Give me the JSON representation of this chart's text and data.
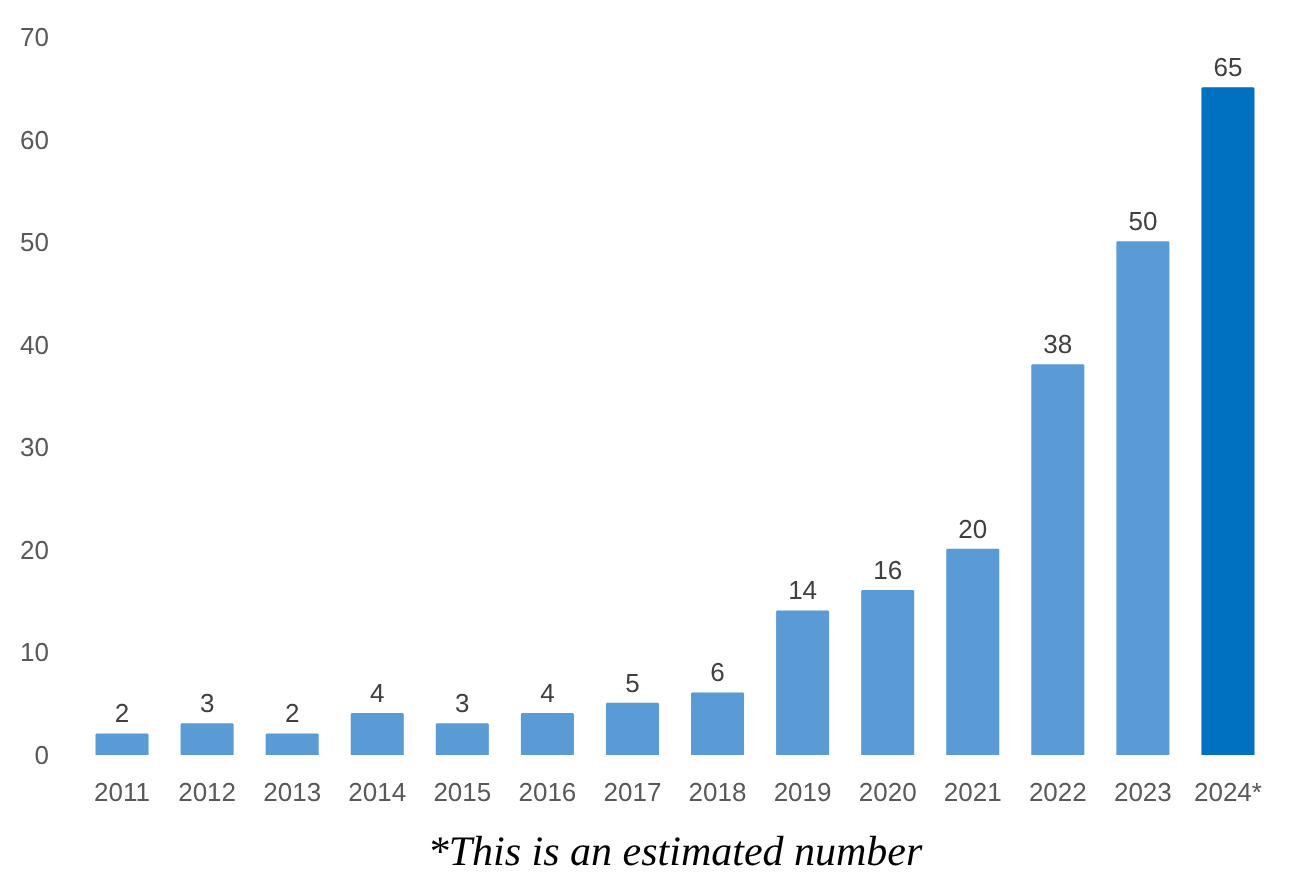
{
  "chart_data": {
    "type": "bar",
    "categories": [
      "2011",
      "2012",
      "2013",
      "2014",
      "2015",
      "2016",
      "2017",
      "2018",
      "2019",
      "2020",
      "2021",
      "2022",
      "2023",
      "2024*"
    ],
    "values": [
      2,
      3,
      2,
      4,
      3,
      4,
      5,
      6,
      14,
      16,
      20,
      38,
      50,
      65
    ],
    "colors": [
      "#5b9bd5",
      "#5b9bd5",
      "#5b9bd5",
      "#5b9bd5",
      "#5b9bd5",
      "#5b9bd5",
      "#5b9bd5",
      "#5b9bd5",
      "#5b9bd5",
      "#5b9bd5",
      "#5b9bd5",
      "#5b9bd5",
      "#5b9bd5",
      "#0070c0"
    ],
    "ylim": [
      0,
      70
    ],
    "yticks": [
      0,
      10,
      20,
      30,
      40,
      50,
      60,
      70
    ],
    "data_labels": true,
    "grid": false,
    "annotations": [
      "*This is an estimated number"
    ]
  }
}
